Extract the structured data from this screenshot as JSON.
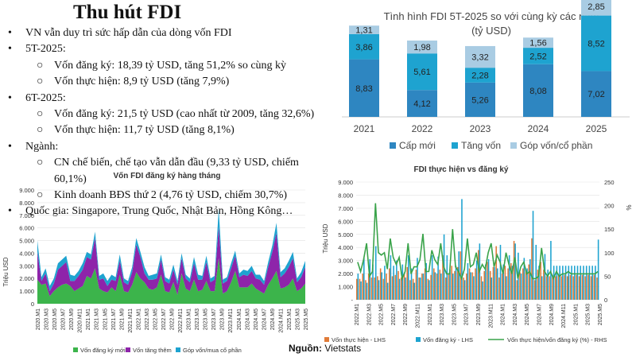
{
  "title": "Thu hút FDI",
  "bullets": [
    {
      "level": 1,
      "text": "VN vẫn duy trì sức hấp dẫn của dòng vốn FDI"
    },
    {
      "level": 1,
      "text": "5T-2025:"
    },
    {
      "level": 2,
      "text": "Vốn đăng ký: 18,39 tỷ USD, tăng 51,2% so cùng kỳ"
    },
    {
      "level": 2,
      "text": "Vốn thực hiện: 8,9 tỷ USD (tăng 7,9%)"
    },
    {
      "level": 1,
      "text": "6T-2025:"
    },
    {
      "level": 2,
      "text": "Vốn đăng ký: 21,5 tỷ USD (cao nhất từ 2009, tăng 32,6%)"
    },
    {
      "level": 2,
      "text": "Vốn thực hiện: 11,7 tỷ USD (tăng 8,1%)"
    },
    {
      "level": 1,
      "text": "Ngành:"
    },
    {
      "level": 2,
      "text": "CN chế biến, chế tạo vẫn dẫn đầu (9,33 tỷ USD, chiếm 60,1%)"
    },
    {
      "level": 2,
      "text": "Kinh doanh BĐS thứ 2 (4,76 tỷ USD, chiếm 30,7%)"
    },
    {
      "level": 1,
      "text": "Quốc gia: Singapore, Trung Quốc, Nhật Bản, Hồng Kông…"
    }
  ],
  "source": {
    "label": "Nguồn:",
    "value": "Vietstats"
  },
  "colors": {
    "dark_blue": "#2e86c1",
    "mid_blue": "#1ea3d0",
    "light_blue": "#a9cce3",
    "green": "#3cb44b",
    "purple": "#8e24aa",
    "orange": "#e07b39",
    "line_green": "#3aa34a"
  },
  "chart_data": [
    {
      "type": "bar",
      "title": "Tình hình FDI 5T-2025 so với cùng kỳ các năm",
      "subtitle": "(tỷ USD)",
      "stacked": true,
      "categories": [
        "2021",
        "2022",
        "2023",
        "2024",
        "2025"
      ],
      "series": [
        {
          "name": "Cấp mới",
          "values": [
            8.83,
            4.12,
            5.26,
            8.08,
            7.02
          ]
        },
        {
          "name": "Tăng vốn",
          "values": [
            3.86,
            5.61,
            2.28,
            2.52,
            8.52
          ]
        },
        {
          "name": "Góp vốn/cổ phần",
          "values": [
            1.31,
            1.98,
            3.32,
            1.56,
            2.85
          ]
        }
      ],
      "value_labels": [
        [
          "8,83",
          "4,12",
          "5,26",
          "8,08",
          "7,02"
        ],
        [
          "3,86",
          "5,61",
          "2,28",
          "2,52",
          "8,52"
        ],
        [
          "1,31",
          "1,98",
          "3,32",
          "1,56",
          "2,85"
        ]
      ],
      "ylim": [
        0,
        20
      ],
      "legend": "bottom"
    },
    {
      "type": "area",
      "title": "Vốn FDI đăng ký hàng tháng",
      "ylabel": "Triệu USD",
      "yticks": [
        "0",
        "1.000",
        "2.000",
        "3.000",
        "4.000",
        "5.000",
        "6.000",
        "7.000",
        "8.000",
        "9.000"
      ],
      "ylim": [
        0,
        9000
      ],
      "xticklabels": [
        "2020.M1",
        "2020.M3",
        "2020.M5",
        "2020.M7",
        "2020.M9",
        "2020.M11",
        "2021.M1",
        "2021.M3",
        "2021.M5",
        "2021.M7",
        "2021.M9",
        "2021.M11",
        "2022.M1",
        "2022.M3",
        "2022.M5",
        "2022.M7",
        "2022.M9",
        "2022.M11",
        "2023.M1",
        "2023.M3",
        "2023.M5",
        "2023.M7",
        "2023.M9",
        "2023.M11",
        "2024.M1",
        "2024.M3",
        "2024.M5",
        "2024.M7",
        "2024.M9",
        "2024.M11",
        "2025.M1",
        "2025.M3",
        "2025.M5"
      ],
      "series": [
        {
          "name": "Vốn đăng ký mới",
          "values": [
            1900,
            1500,
            1600,
            600,
            1000,
            1300,
            1500,
            1600,
            1400,
            1000,
            1200,
            1400,
            2200,
            2000,
            2800,
            1200,
            1000,
            900,
            1300,
            1000,
            2300,
            1000,
            900,
            1500,
            2500,
            2000,
            1700,
            1200,
            1100,
            1300,
            2300,
            1000,
            900,
            1700,
            700,
            2400,
            1200,
            1000,
            1900,
            1000,
            1100,
            1800,
            1000,
            1000,
            3600,
            800,
            1000,
            1700,
            2600,
            1300,
            1300,
            1300,
            1600,
            1200,
            1000,
            800,
            1500,
            2000,
            2600,
            1200,
            1300,
            1500,
            2000,
            1000,
            1200,
            1600
          ]
        },
        {
          "name": "Vốn tăng thêm",
          "values": [
            2200,
            300,
            800,
            400,
            600,
            1400,
            1500,
            1700,
            400,
            800,
            1000,
            1300,
            1500,
            1500,
            2400,
            700,
            1000,
            500,
            600,
            800,
            1100,
            700,
            600,
            1000,
            2200,
            1700,
            700,
            700,
            800,
            700,
            1200,
            800,
            700,
            1000,
            800,
            1200,
            800,
            700,
            1300,
            900,
            800,
            1500,
            700,
            900,
            2500,
            800,
            800,
            1100,
            1200,
            800,
            1000,
            900,
            1000,
            800,
            900,
            700,
            1400,
            2100,
            3000,
            900,
            1100,
            1400,
            1600,
            700,
            900,
            1300
          ]
        },
        {
          "name": "Góp vốn/mua cổ phần",
          "values": [
            900,
            300,
            400,
            400,
            400,
            500,
            500,
            500,
            500,
            400,
            400,
            500,
            400,
            400,
            500,
            300,
            400,
            400,
            400,
            300,
            500,
            300,
            300,
            400,
            500,
            400,
            500,
            300,
            400,
            400,
            400,
            300,
            300,
            400,
            300,
            400,
            300,
            300,
            500,
            400,
            300,
            500,
            300,
            300,
            1400,
            300,
            300,
            400,
            400,
            300,
            400,
            400,
            400,
            300,
            400,
            300,
            400,
            500,
            800,
            400,
            400,
            500,
            500,
            300,
            400,
            500
          ]
        }
      ],
      "legend": "bottom"
    },
    {
      "type": "bar",
      "title": "FDI thực hiện vs đăng ký",
      "ylabel": "Triệu USD",
      "y2label": "%",
      "yticks": [
        "-",
        "1.000",
        "2.000",
        "3.000",
        "4.000",
        "5.000",
        "6.000",
        "7.000",
        "8.000",
        "9.000"
      ],
      "ylim": [
        0,
        9000
      ],
      "y2ticks": [
        "0",
        "50",
        "100",
        "150",
        "200",
        "250"
      ],
      "y2lim": [
        0,
        250
      ],
      "xticklabels": [
        "2022.M1",
        "2022.M3",
        "2022.M5",
        "2022.M7",
        "2022.M9",
        "2022.M11",
        "2023.M1",
        "2023.M3",
        "2023.M5",
        "2023.M7",
        "2023.M9",
        "2023.M11",
        "2024.M1",
        "2024.M3",
        "2024.M5",
        "2024.M7",
        "2024.M9",
        "2024.M11",
        "2025.M1",
        "2025.M3",
        "2025.M5"
      ],
      "series": [
        {
          "name": "Vốn thực hiện - LHS",
          "values": [
            1600,
            1600,
            2000,
            1500,
            2000,
            1700,
            1700,
            1800,
            2400,
            1600,
            2000,
            2400,
            1800,
            1900,
            2200,
            1700,
            2000,
            2500,
            1500,
            1600,
            2300,
            1700,
            2000,
            2400,
            1600,
            1900,
            2400,
            2000,
            2300,
            3400,
            1700,
            2000,
            2600,
            2200,
            2500,
            3700,
            1700,
            2000,
            2400,
            2100,
            2400,
            3800,
            1800,
            2200,
            2900,
            2200,
            2500,
            4100,
            1700,
            2000,
            2600,
            2400,
            2800,
            4500,
            1500,
            2100,
            2400,
            2300,
            2700,
            4700,
            1500,
            2300,
            2900,
            2300,
            1800,
            1800,
            1900,
            1800,
            1900,
            1800,
            1900,
            1800,
            1900,
            1800,
            1900,
            1800,
            1900,
            1800,
            1900,
            1800,
            1900,
            1700
          ]
        },
        {
          "name": "Vốn đăng ký - LHS",
          "values": [
            2000,
            1400,
            3200,
            1300,
            3100,
            2700,
            4100,
            1500,
            2100,
            2600,
            1300,
            3400,
            2600,
            3000,
            1600,
            2700,
            1700,
            3400,
            2400,
            1300,
            3200,
            1700,
            2000,
            2800,
            1500,
            3400,
            2100,
            3300,
            2000,
            5000,
            3400,
            2300,
            2000,
            2600,
            3700,
            7700,
            1500,
            2800,
            2100,
            1800,
            3000,
            4300,
            1400,
            2700,
            3100,
            1700,
            2500,
            2400,
            4200,
            2700,
            1800,
            3400,
            2600,
            4300,
            3600,
            2000,
            3200,
            2400,
            3100,
            6800,
            4200,
            2600,
            1800,
            3500,
            2300,
            4500,
            2600,
            2600,
            2600,
            2600,
            2600,
            2600,
            2600,
            2600,
            2600,
            2600,
            2600,
            2600,
            2600,
            2600,
            2600,
            4600
          ]
        },
        {
          "name": "Vốn thực hiện/vốn đăng ký (%) - RHS",
          "values": [
            80,
            60,
            85,
            120,
            50,
            60,
            205,
            100,
            95,
            100,
            65,
            130,
            90,
            75,
            90,
            45,
            60,
            120,
            55,
            70,
            70,
            85,
            140,
            60,
            60,
            105,
            85,
            75,
            120,
            70,
            55,
            55,
            150,
            70,
            60,
            45,
            65,
            130,
            70,
            75,
            100,
            60,
            75,
            65,
            100,
            120,
            70,
            95,
            80,
            55,
            100,
            75,
            55,
            90,
            45,
            70,
            80,
            55,
            60,
            45,
            45,
            50,
            110,
            60,
            50,
            60,
            45,
            60,
            50,
            55,
            55,
            60,
            55,
            55,
            55,
            55,
            55,
            55,
            55,
            55,
            55,
            60
          ]
        }
      ],
      "legend": "bottom"
    }
  ]
}
